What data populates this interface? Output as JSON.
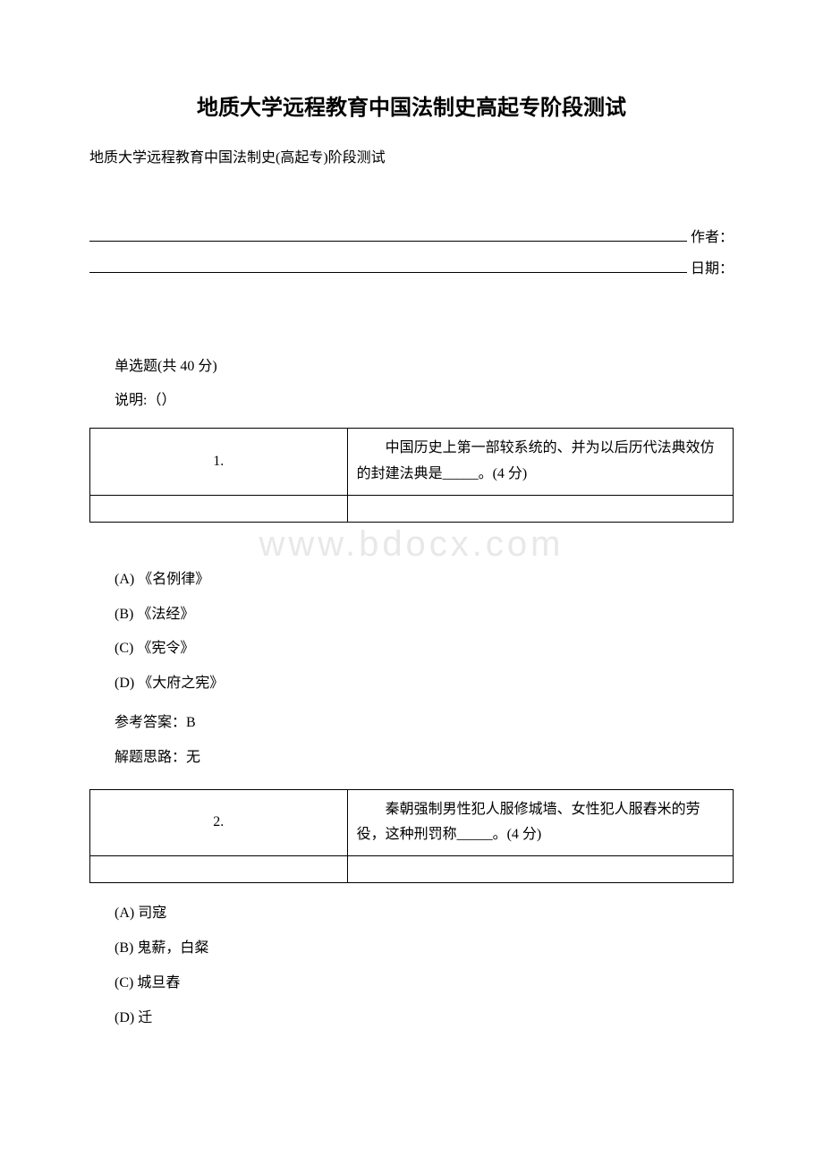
{
  "title": "地质大学远程教育中国法制史高起专阶段测试",
  "subtitle": "地质大学远程教育中国法制史(高起专)阶段测试",
  "author_label": "作者：",
  "date_label": "日期：",
  "section_heading": "单选题(共 40 分)",
  "instruction": "说明:（）",
  "watermark": "www.bdocx.com",
  "questions": [
    {
      "num": "1.",
      "text": "中国历史上第一部较系统的、并为以后历代法典效仿的封建法典是_____。(4 分)",
      "options": {
        "A": "(A) 《名例律》",
        "B": "(B) 《法经》",
        "C": "(C) 《宪令》",
        "D": "(D) 《大府之宪》"
      },
      "answer_label": "参考答案：",
      "answer_value": "B",
      "explain_label": "解题思路：",
      "explain_value": "无"
    },
    {
      "num": "2.",
      "text": "秦朝强制男性犯人服修城墙、女性犯人服舂米的劳役，这种刑罚称_____。(4 分)",
      "options": {
        "A": "(A) 司寇",
        "B": "(B) 鬼薪，白粲",
        "C": "(C) 城旦舂",
        "D": "(D) 迁"
      }
    }
  ]
}
